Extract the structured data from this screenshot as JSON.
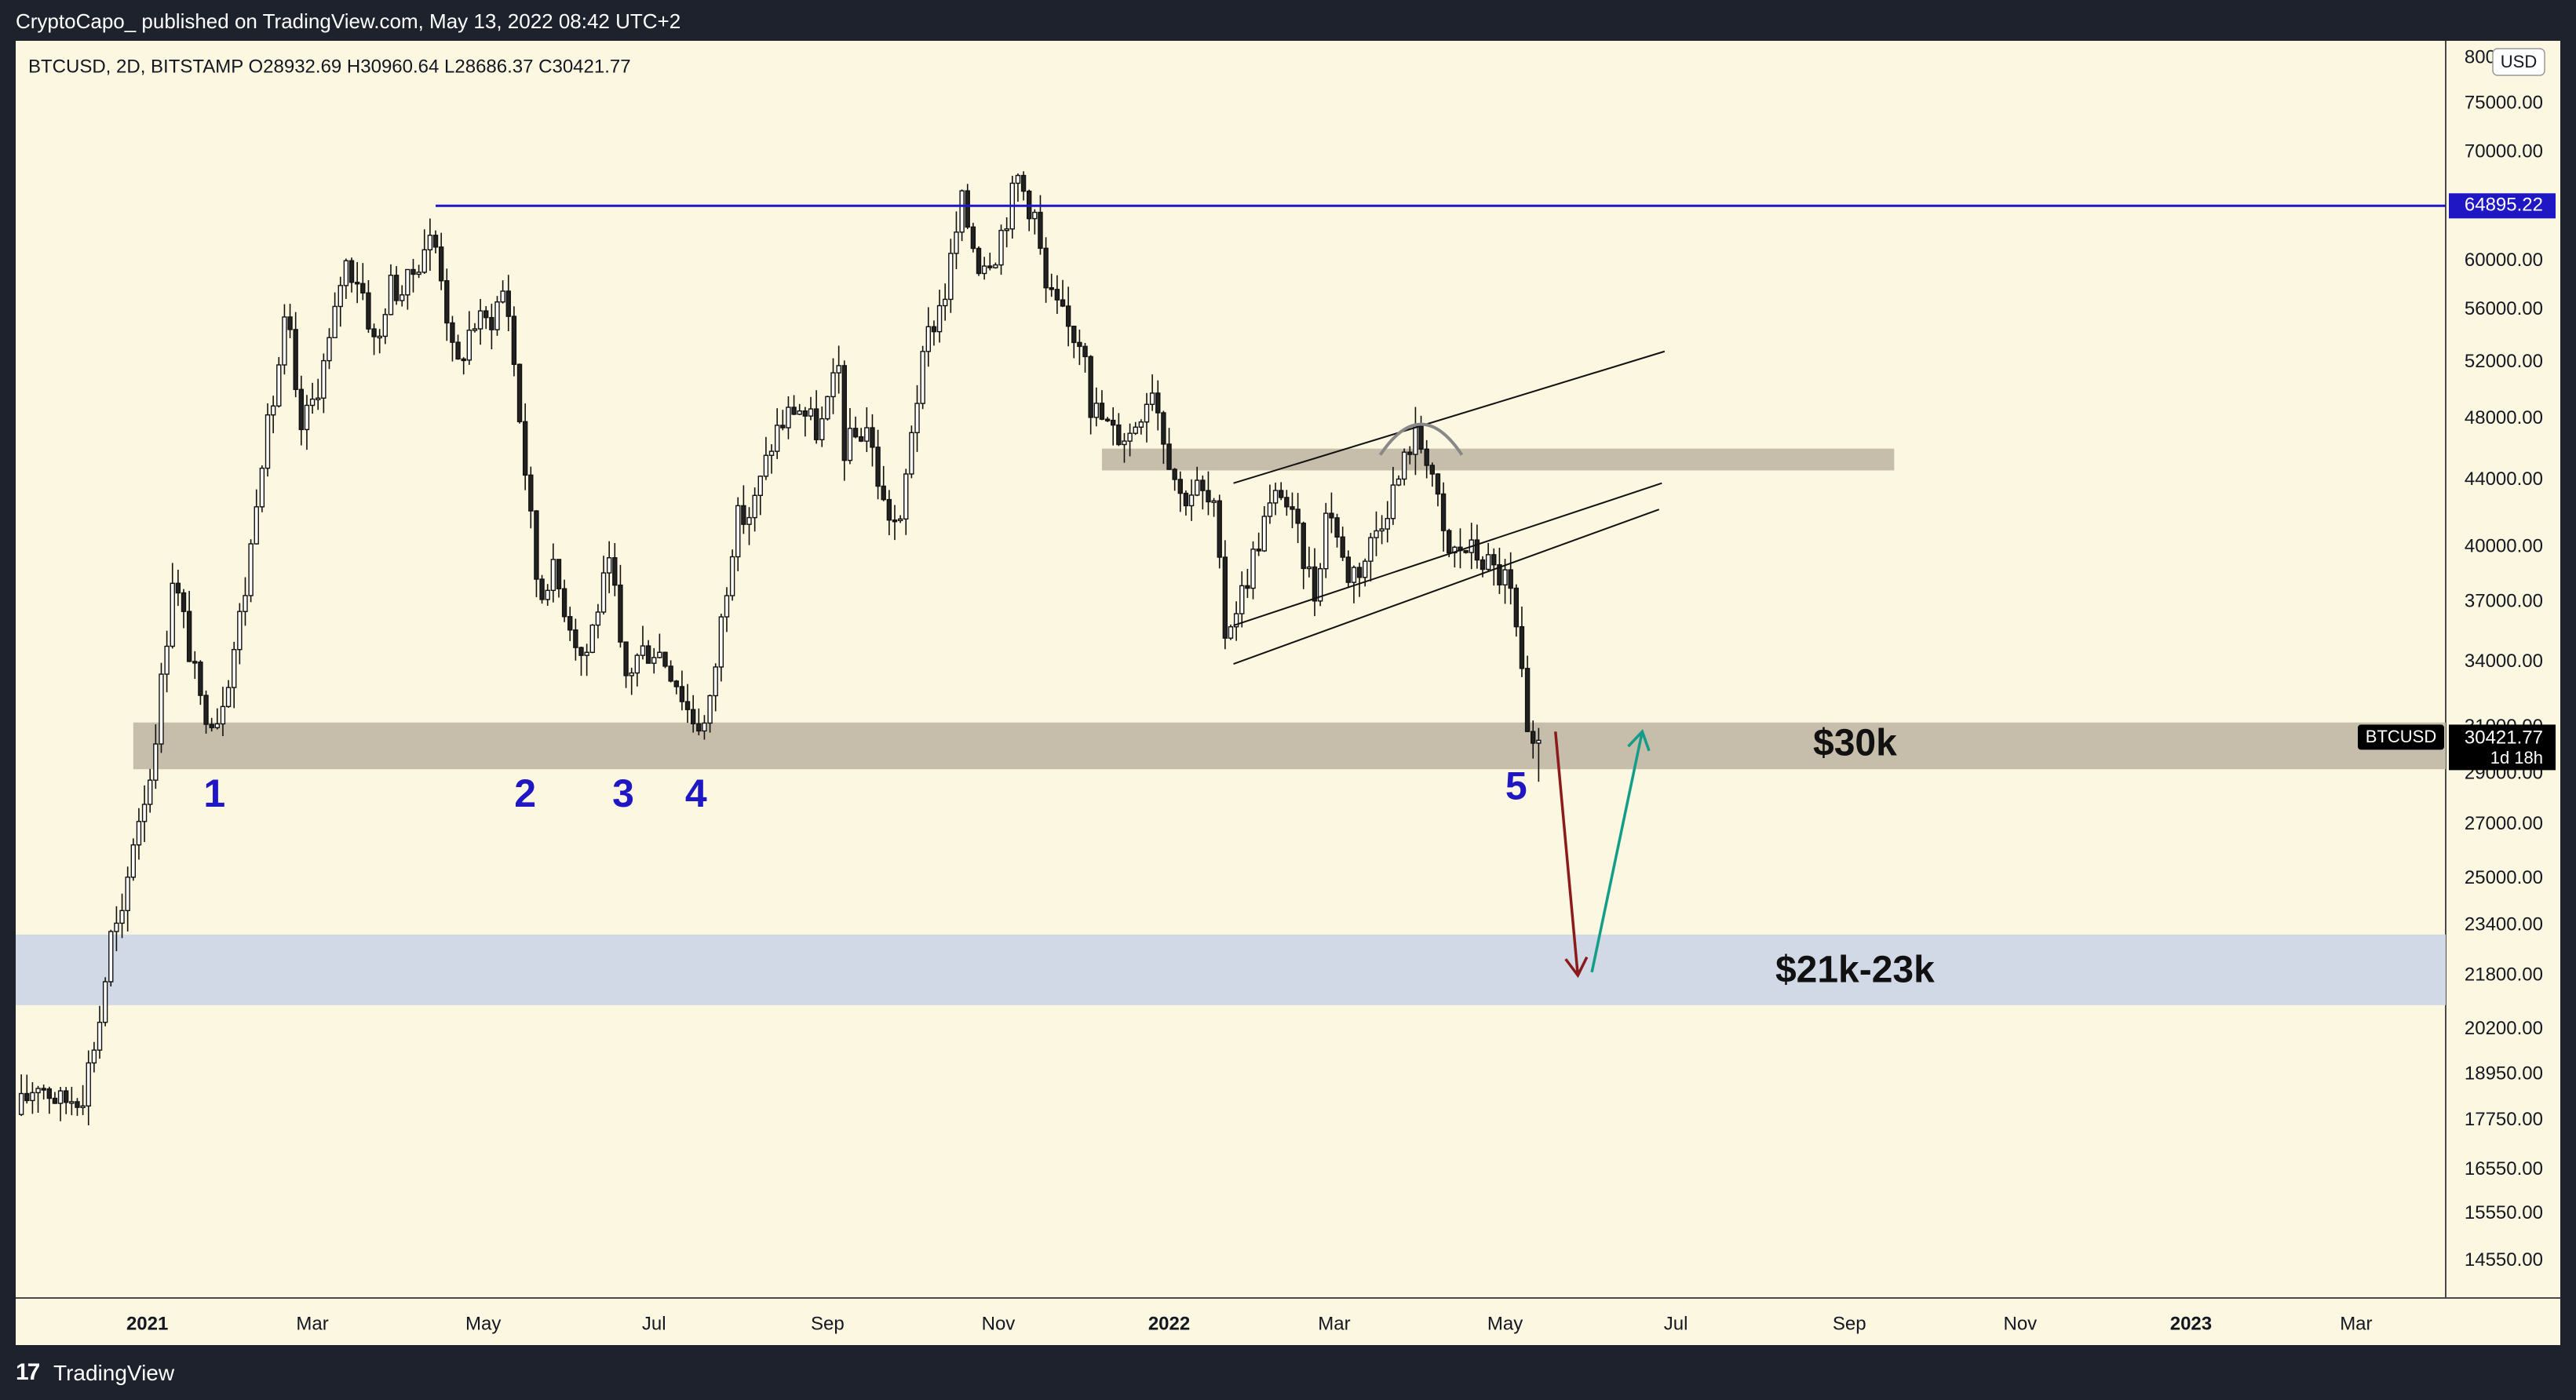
{
  "header": {
    "publisher_line": "CryptoCapo_ published on TradingView.com, May 13, 2022 08:42 UTC+2"
  },
  "footer": {
    "logo_glyph": "17",
    "brand": "TradingView"
  },
  "chart_data": {
    "type": "candlestick",
    "legend_line": "BTCUSD, 2D, BITSTAMP  O28932.69  H30960.64  L28686.37  C30421.77",
    "symbol": "BTCUSD",
    "interval": "2D",
    "exchange": "BITSTAMP",
    "ohlc": {
      "open": 28932.69,
      "high": 30960.64,
      "low": 28686.37,
      "close": 30421.77
    },
    "currency": "USD",
    "scale": "log",
    "ylim": [
      13800,
      82000
    ],
    "xlim": [
      "2020-11-15",
      "2023-04-02"
    ],
    "y_ticks": [
      {
        "v": 80000,
        "t": "80000.00"
      },
      {
        "v": 75000,
        "t": "75000.00"
      },
      {
        "v": 70000,
        "t": "70000.00"
      },
      {
        "v": 65000,
        "t": "65000.00"
      },
      {
        "v": 60000,
        "t": "60000.00"
      },
      {
        "v": 56000,
        "t": "56000.00"
      },
      {
        "v": 52000,
        "t": "52000.00"
      },
      {
        "v": 48000,
        "t": "48000.00"
      },
      {
        "v": 44000,
        "t": "44000.00"
      },
      {
        "v": 40000,
        "t": "40000.00"
      },
      {
        "v": 37000,
        "t": "37000.00"
      },
      {
        "v": 34000,
        "t": "34000.00"
      },
      {
        "v": 31000,
        "t": "31000.00"
      },
      {
        "v": 29000,
        "t": "29000.00"
      },
      {
        "v": 27000,
        "t": "27000.00"
      },
      {
        "v": 25000,
        "t": "25000.00"
      },
      {
        "v": 23400,
        "t": "23400.00"
      },
      {
        "v": 21800,
        "t": "21800.00"
      },
      {
        "v": 20200,
        "t": "20200.00"
      },
      {
        "v": 18950,
        "t": "18950.00"
      },
      {
        "v": 17750,
        "t": "17750.00"
      },
      {
        "v": 16550,
        "t": "16550.00"
      },
      {
        "v": 15550,
        "t": "15550.00"
      },
      {
        "v": 14550,
        "t": "14550.00"
      }
    ],
    "x_ticks": [
      {
        "d": "2021-01-01",
        "t": "2021",
        "bold": true
      },
      {
        "d": "2021-03-01",
        "t": "Mar",
        "bold": false
      },
      {
        "d": "2021-05-01",
        "t": "May",
        "bold": false
      },
      {
        "d": "2021-07-01",
        "t": "Jul",
        "bold": false
      },
      {
        "d": "2021-09-01",
        "t": "Sep",
        "bold": false
      },
      {
        "d": "2021-11-01",
        "t": "Nov",
        "bold": false
      },
      {
        "d": "2022-01-01",
        "t": "2022",
        "bold": true
      },
      {
        "d": "2022-03-01",
        "t": "Mar",
        "bold": false
      },
      {
        "d": "2022-05-01",
        "t": "May",
        "bold": false
      },
      {
        "d": "2022-07-01",
        "t": "Jul",
        "bold": false
      },
      {
        "d": "2022-09-01",
        "t": "Sep",
        "bold": false
      },
      {
        "d": "2022-11-01",
        "t": "Nov",
        "bold": false
      },
      {
        "d": "2023-01-01",
        "t": "2023",
        "bold": true
      },
      {
        "d": "2023-03-01",
        "t": "Mar",
        "bold": false
      }
    ],
    "price_path": [
      [
        "2020-11-16",
        17900
      ],
      [
        "2020-11-24",
        18800
      ],
      [
        "2020-12-02",
        18200
      ],
      [
        "2020-12-10",
        18500
      ],
      [
        "2020-12-16",
        20500
      ],
      [
        "2020-12-20",
        23000
      ],
      [
        "2020-12-24",
        23500
      ],
      [
        "2020-12-28",
        26500
      ],
      [
        "2021-01-03",
        29000
      ],
      [
        "2021-01-08",
        34000
      ],
      [
        "2021-01-11",
        38500
      ],
      [
        "2021-01-15",
        36000
      ],
      [
        "2021-01-21",
        32000
      ],
      [
        "2021-01-27",
        31500
      ],
      [
        "2021-02-01",
        34000
      ],
      [
        "2021-02-07",
        38500
      ],
      [
        "2021-02-11",
        45000
      ],
      [
        "2021-02-15",
        48000
      ],
      [
        "2021-02-21",
        56000
      ],
      [
        "2021-02-25",
        47000
      ],
      [
        "2021-03-01",
        48500
      ],
      [
        "2021-03-09",
        54000
      ],
      [
        "2021-03-13",
        60000
      ],
      [
        "2021-03-19",
        58500
      ],
      [
        "2021-03-25",
        52500
      ],
      [
        "2021-03-29",
        58000
      ],
      [
        "2021-04-04",
        57500
      ],
      [
        "2021-04-12",
        62000
      ],
      [
        "2021-04-16",
        61000
      ],
      [
        "2021-04-22",
        51000
      ],
      [
        "2021-04-28",
        55000
      ],
      [
        "2021-05-04",
        55000
      ],
      [
        "2021-05-10",
        58000
      ],
      [
        "2021-05-14",
        50000
      ],
      [
        "2021-05-18",
        43000
      ],
      [
        "2021-05-22",
        37000
      ],
      [
        "2021-05-26",
        39000
      ],
      [
        "2021-06-01",
        36500
      ],
      [
        "2021-06-07",
        34000
      ],
      [
        "2021-06-13",
        37500
      ],
      [
        "2021-06-17",
        39000
      ],
      [
        "2021-06-21",
        33000
      ],
      [
        "2021-06-27",
        34500
      ],
      [
        "2021-07-03",
        34700
      ],
      [
        "2021-07-09",
        33500
      ],
      [
        "2021-07-15",
        31500
      ],
      [
        "2021-07-21",
        31000
      ],
      [
        "2021-07-25",
        35000
      ],
      [
        "2021-07-31",
        41500
      ],
      [
        "2021-08-06",
        42000
      ],
      [
        "2021-08-14",
        47000
      ],
      [
        "2021-08-22",
        49000
      ],
      [
        "2021-08-30",
        47000
      ],
      [
        "2021-09-06",
        51500
      ],
      [
        "2021-09-08",
        46000
      ],
      [
        "2021-09-16",
        47500
      ],
      [
        "2021-09-22",
        42500
      ],
      [
        "2021-09-28",
        41000
      ],
      [
        "2021-10-02",
        47500
      ],
      [
        "2021-10-08",
        54000
      ],
      [
        "2021-10-14",
        57500
      ],
      [
        "2021-10-20",
        65000
      ],
      [
        "2021-10-26",
        60000
      ],
      [
        "2021-11-01",
        61000
      ],
      [
        "2021-11-09",
        67500
      ],
      [
        "2021-11-15",
        64000
      ],
      [
        "2021-11-19",
        57500
      ],
      [
        "2021-11-27",
        54500
      ],
      [
        "2021-12-03",
        53500
      ],
      [
        "2021-12-05",
        49000
      ],
      [
        "2021-12-13",
        47000
      ],
      [
        "2021-12-19",
        47000
      ],
      [
        "2021-12-27",
        50500
      ],
      [
        "2021-12-31",
        47000
      ],
      [
        "2022-01-06",
        43000
      ],
      [
        "2022-01-12",
        43500
      ],
      [
        "2022-01-18",
        42000
      ],
      [
        "2022-01-22",
        35500
      ],
      [
        "2022-01-28",
        37500
      ],
      [
        "2022-02-05",
        41500
      ],
      [
        "2022-02-11",
        43500
      ],
      [
        "2022-02-17",
        40500
      ],
      [
        "2022-02-23",
        37500
      ],
      [
        "2022-02-28",
        43000
      ],
      [
        "2022-03-06",
        38500
      ],
      [
        "2022-03-12",
        39000
      ],
      [
        "2022-03-18",
        41500
      ],
      [
        "2022-03-26",
        44500
      ],
      [
        "2022-03-30",
        47000
      ],
      [
        "2022-04-05",
        45500
      ],
      [
        "2022-04-11",
        39500
      ],
      [
        "2022-04-17",
        40000
      ],
      [
        "2022-04-23",
        39500
      ],
      [
        "2022-04-29",
        38500
      ],
      [
        "2022-05-03",
        38200
      ],
      [
        "2022-05-07",
        34500
      ],
      [
        "2022-05-11",
        29000
      ],
      [
        "2022-05-13",
        30400
      ]
    ],
    "horizontal_level": {
      "price": 64895.22,
      "label": "64895.22",
      "from": "2021-04-14",
      "color": "#1f16c4"
    },
    "zones": [
      {
        "name": "30k-zone",
        "from": "2020-12-27",
        "to": "2023-04-02",
        "low": 29200,
        "high": 31200,
        "color": "#c6beaa"
      },
      {
        "name": "21k-23k-zone",
        "from": "2020-11-15",
        "to": "2023-04-02",
        "low": 20900,
        "high": 23100,
        "color": "#d1d9e6"
      },
      {
        "name": "resistance-zone-44k",
        "from": "2021-12-08",
        "to": "2022-09-17",
        "low": 44600,
        "high": 46000,
        "color": "#c6beaa"
      }
    ],
    "trendlines": [
      {
        "from": [
          "2022-01-24",
          43800
        ],
        "to": [
          "2022-06-27",
          52800
        ]
      },
      {
        "from": [
          "2022-01-24",
          35800
        ],
        "to": [
          "2022-06-26",
          43800
        ]
      },
      {
        "from": [
          "2022-01-24",
          33900
        ],
        "to": [
          "2022-06-25",
          42200
        ]
      }
    ],
    "arcs": [
      {
        "center": [
          "2022-04-01",
          46000
        ],
        "label": "top-arc"
      }
    ],
    "arrows": [
      {
        "name": "down-arrow",
        "from": [
          "2022-05-19",
          30800
        ],
        "to": [
          "2022-05-27",
          21800
        ],
        "color": "#8b1a1a"
      },
      {
        "name": "up-arrow",
        "from": [
          "2022-06-01",
          21900
        ],
        "to": [
          "2022-06-19",
          30800
        ],
        "color": "#139d88"
      }
    ],
    "wave_labels": [
      {
        "t": "1",
        "d": "2021-01-25",
        "price": 28100
      },
      {
        "t": "2",
        "d": "2021-05-16",
        "price": 28100
      },
      {
        "t": "3",
        "d": "2021-06-20",
        "price": 28100
      },
      {
        "t": "4",
        "d": "2021-07-16",
        "price": 28100
      },
      {
        "t": "5",
        "d": "2022-05-05",
        "price": 28400
      }
    ],
    "annotations": [
      {
        "t": "$30k",
        "d": "2022-09-03",
        "price": 30200
      },
      {
        "t": "$21k-23k",
        "d": "2022-09-03",
        "price": 21900
      }
    ],
    "last_price": {
      "value": 30421.77,
      "label": "30421.77",
      "countdown": "1d 18h",
      "symbol_tag": "BTCUSD"
    }
  }
}
